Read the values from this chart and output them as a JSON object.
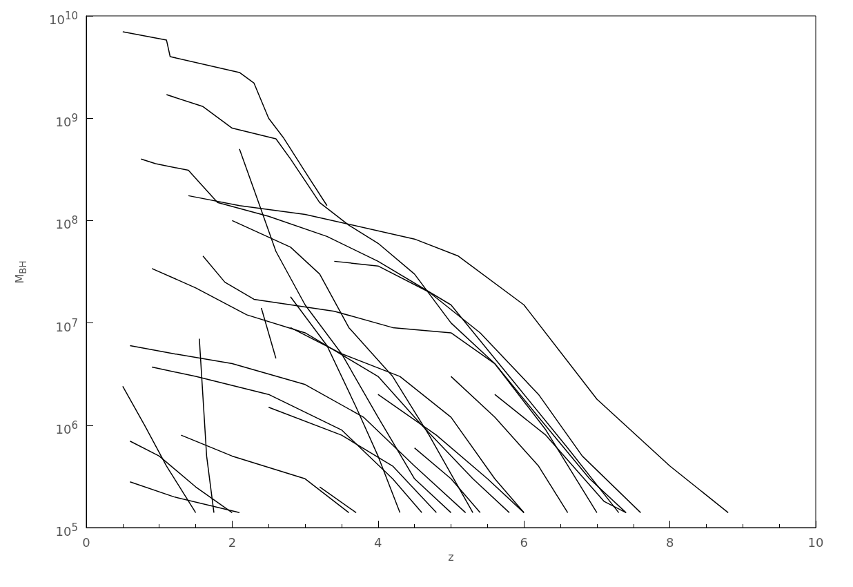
{
  "chart_data": {
    "type": "line",
    "xlabel": "z",
    "ylabel": "M$_{BH}$",
    "log": "y",
    "grid": false,
    "marker": "none",
    "line_style": "solid",
    "color": "#000000",
    "xlim": [
      0,
      10
    ],
    "xticks": [
      0,
      2,
      4,
      6,
      8,
      10
    ],
    "ylim": [
      100000,
      10000000000
    ],
    "yticks": [
      {
        "value": 100000,
        "label": "10$^{5}$"
      },
      {
        "value": 1000000,
        "label": "10$^{6}$"
      },
      {
        "value": 10000000,
        "label": "10$^{7}$"
      },
      {
        "value": 100000000,
        "label": "10$^{8}$"
      },
      {
        "value": 1000000000,
        "label": "10$^{9}$"
      },
      {
        "value": 10000000000,
        "label": "10$^{10}$"
      }
    ],
    "series": [
      {
        "x": [
          1.4,
          2.1,
          3.0,
          4.5,
          5.1,
          6.0,
          7.0,
          8.0,
          8.8
        ],
        "values": [
          175000000,
          140000000,
          115000000,
          66000000,
          45000000,
          15000000,
          1800000,
          400000,
          140000
        ]
      },
      {
        "x": [
          0.5,
          1.1,
          1.15,
          2.1,
          2.3,
          2.5,
          2.7,
          3.0,
          3.3
        ],
        "values": [
          7000000000,
          5800000000,
          4000000000,
          2800000000,
          2200000000,
          1000000000,
          650000000,
          300000000,
          140000000
        ]
      },
      {
        "x": [
          1.1,
          1.6,
          2.0,
          2.6,
          2.8,
          3.2,
          3.6,
          4.0,
          4.5,
          5.0,
          5.6,
          6.2,
          6.9,
          7.4
        ],
        "values": [
          1700000000,
          1300000000,
          800000000,
          630000000,
          400000000,
          150000000,
          90000000,
          60000000,
          30000000,
          10000000,
          4000000,
          1200000,
          300000,
          140000
        ]
      },
      {
        "x": [
          0.75,
          0.95,
          1.4,
          1.8,
          2.5,
          3.3,
          4.0,
          5.0,
          5.8,
          6.6,
          7.3
        ],
        "values": [
          400000000,
          360000000,
          310000000,
          150000000,
          110000000,
          70000000,
          40000000,
          15000000,
          3000000,
          600000,
          140000
        ]
      },
      {
        "x": [
          2.1,
          2.3,
          2.6,
          3.0,
          3.5,
          4.0,
          4.5,
          5.0
        ],
        "values": [
          500000000,
          200000000,
          50000000,
          15000000,
          5000000,
          1200000,
          300000,
          140000
        ]
      },
      {
        "x": [
          0.9,
          1.5,
          2.2,
          3.0,
          4.0,
          4.6,
          5.3,
          5.8
        ],
        "values": [
          34000000,
          22000000,
          12000000,
          8000000,
          3000000,
          1000000,
          300000,
          140000
        ]
      },
      {
        "x": [
          1.6,
          1.9,
          2.3,
          3.4,
          4.2,
          5.0,
          5.6,
          6.3,
          7.0
        ],
        "values": [
          45000000,
          25000000,
          17000000,
          13000000,
          9000000,
          8000000,
          4000000,
          900000,
          140000
        ]
      },
      {
        "x": [
          1.55,
          1.65,
          1.75
        ],
        "values": [
          7000000,
          500000,
          140000
        ]
      },
      {
        "x": [
          0.6,
          1.2,
          2.0,
          3.0,
          3.8,
          4.5,
          5.2
        ],
        "values": [
          6000000,
          5000000,
          4000000,
          2500000,
          1200000,
          400000,
          140000
        ]
      },
      {
        "x": [
          0.5,
          0.8,
          1.1,
          1.5
        ],
        "values": [
          2400000,
          1000000,
          400000,
          140000
        ]
      },
      {
        "x": [
          0.9,
          1.5,
          2.5,
          3.5,
          4.2,
          4.6
        ],
        "values": [
          3700000,
          3000000,
          2000000,
          900000,
          300000,
          140000
        ]
      },
      {
        "x": [
          0.6,
          1.0,
          1.5,
          2.0
        ],
        "values": [
          700000,
          500000,
          250000,
          140000
        ]
      },
      {
        "x": [
          0.6,
          1.2,
          2.1
        ],
        "values": [
          280000,
          200000,
          140000
        ]
      },
      {
        "x": [
          1.3,
          2.0,
          3.0,
          3.6
        ],
        "values": [
          800000,
          500000,
          300000,
          140000
        ]
      },
      {
        "x": [
          2.8,
          3.3,
          3.7,
          4.0,
          4.3
        ],
        "values": [
          18000000,
          6000000,
          1500000,
          500000,
          140000
        ]
      },
      {
        "x": [
          2.4,
          2.6
        ],
        "values": [
          14000000,
          4500000
        ]
      },
      {
        "x": [
          3.4,
          4.0,
          4.7,
          5.4,
          6.2,
          6.8,
          7.6
        ],
        "values": [
          40000000,
          36000000,
          20000000,
          8000000,
          2000000,
          500000,
          140000
        ]
      },
      {
        "x": [
          4.0,
          4.8,
          5.5,
          6.0
        ],
        "values": [
          2000000,
          800000,
          300000,
          140000
        ]
      },
      {
        "x": [
          2.5,
          3.5,
          4.2,
          4.8
        ],
        "values": [
          1500000,
          800000,
          400000,
          140000
        ]
      },
      {
        "x": [
          5.0,
          5.6,
          6.2,
          6.6
        ],
        "values": [
          3000000,
          1200000,
          400000,
          140000
        ]
      },
      {
        "x": [
          3.2,
          3.7
        ],
        "values": [
          250000,
          140000
        ]
      },
      {
        "x": [
          4.5,
          5.0,
          5.4
        ],
        "values": [
          600000,
          300000,
          140000
        ]
      },
      {
        "x": [
          5.6,
          6.3,
          7.1,
          7.4
        ],
        "values": [
          2000000,
          800000,
          180000,
          140000
        ]
      },
      {
        "x": [
          2.0,
          2.8,
          3.2,
          3.6,
          4.2,
          4.7,
          5.3
        ],
        "values": [
          100000000,
          55000000,
          30000000,
          9000000,
          3000000,
          800000,
          140000
        ]
      },
      {
        "x": [
          2.8,
          3.5,
          4.3,
          5.0,
          5.6,
          6.0
        ],
        "values": [
          9000000,
          5000000,
          3000000,
          1200000,
          300000,
          140000
        ]
      }
    ]
  }
}
